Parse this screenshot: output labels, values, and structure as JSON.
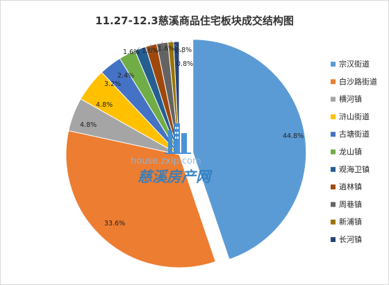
{
  "chart_data": {
    "type": "pie",
    "title": "11.27-12.3慈溪商品住宅板块成交结构图",
    "categories": [
      "宗汉街道",
      "白沙路街道",
      "横河镇",
      "浒山街道",
      "古塘街道",
      "龙山镇",
      "观海卫镇",
      "逍林镇",
      "周巷镇",
      "新浦镇",
      "长河镇"
    ],
    "values": [
      44.8,
      33.6,
      4.8,
      4.8,
      3.2,
      2.4,
      1.6,
      1.6,
      1.6,
      0.8,
      0.8
    ],
    "value_labels": [
      "44.8%",
      "33.6%",
      "4.8%",
      "4.8%",
      "3.2%",
      "2.4%",
      "1.6%",
      "1.6%",
      "1.6%",
      "0.8%",
      "0.8%"
    ],
    "colors": [
      "#5b9bd5",
      "#ed7d31",
      "#a5a5a5",
      "#ffc000",
      "#4472c4",
      "#70ad47",
      "#255e91",
      "#9e480e",
      "#636363",
      "#997300",
      "#264478"
    ],
    "legend_position": "right",
    "exploded": "宗汉街道"
  },
  "watermark": {
    "url_text": "house.zxip.com",
    "brand_text": "慈溪房产网",
    "logo_icon": "building-icon"
  }
}
